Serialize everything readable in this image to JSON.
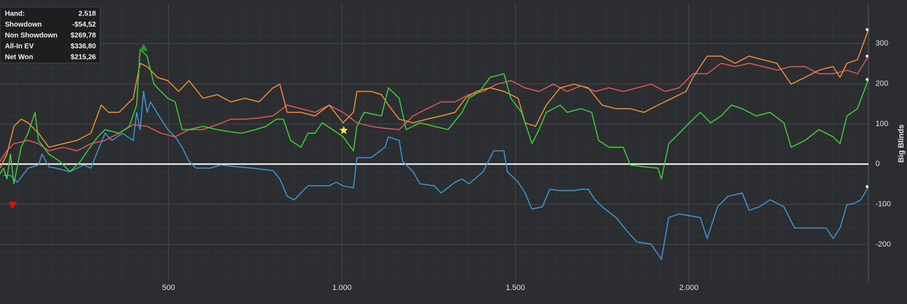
{
  "stats": [
    {
      "label": "Hand:",
      "value": "2.518"
    },
    {
      "label": "Showdown",
      "value": "-$54,52"
    },
    {
      "label": "Non Showdown",
      "value": "$269,78"
    },
    {
      "label": "All-In EV",
      "value": "$336,80"
    },
    {
      "label": "Net Won",
      "value": "$215,26"
    }
  ],
  "chart_data": {
    "type": "line",
    "y_axis_label": "Big Blinds",
    "xlim": [
      14,
      2518
    ],
    "ylim": [
      -296,
      400
    ],
    "xticks": [
      500,
      {
        "value": 1000,
        "label": "1.000"
      },
      {
        "value": 1500,
        "label": "1.500"
      },
      {
        "value": 2000,
        "label": "2.000"
      }
    ],
    "yticks": [
      -200,
      -100,
      0,
      100,
      200,
      300
    ],
    "grid": true,
    "series": [
      {
        "color": "#3b98d6",
        "x": [
          24,
          44,
          64,
          95,
          125,
          135,
          155,
          175,
          216,
          256,
          276,
          296,
          317,
          337,
          367,
          398,
          408,
          418,
          428,
          438,
          448,
          478,
          498,
          519,
          539,
          559,
          579,
          620,
          650,
          700,
          741,
          801,
          821,
          842,
          862,
          902,
          922,
          963,
          983,
          1003,
          1033,
          1043,
          1084,
          1124,
          1134,
          1165,
          1175,
          1205,
          1225,
          1266,
          1286,
          1326,
          1346,
          1366,
          1407,
          1437,
          1467,
          1477,
          1508,
          1528,
          1548,
          1578,
          1599,
          1629,
          1669,
          1689,
          1710,
          1730,
          1750,
          1790,
          1831,
          1851,
          1891,
          1921,
          1942,
          1972,
          2033,
          2053,
          2083,
          2113,
          2154,
          2174,
          2204,
          2234,
          2274,
          2305,
          2355,
          2396,
          2416,
          2436,
          2456,
          2476,
          2496,
          2518
        ],
        "values": [
          -28,
          -28,
          -45,
          -10,
          -2,
          25,
          -7,
          -10,
          -19,
          -2,
          -10,
          33,
          77,
          59,
          77,
          59,
          129,
          86,
          181,
          129,
          155,
          112,
          86,
          68,
          42,
          7,
          -10,
          -10,
          -2,
          -7,
          -10,
          -16,
          -37,
          -80,
          -89,
          -54,
          -54,
          -54,
          -45,
          -54,
          -59,
          16,
          16,
          42,
          68,
          59,
          7,
          -19,
          -49,
          -54,
          -72,
          -45,
          -37,
          -49,
          -19,
          33,
          33,
          -19,
          -45,
          -72,
          -112,
          -106,
          -63,
          -66,
          -66,
          -63,
          -63,
          -89,
          -106,
          -133,
          -176,
          -194,
          -199,
          -237,
          -133,
          -124,
          -133,
          -185,
          -106,
          -80,
          -72,
          -115,
          -106,
          -89,
          -106,
          -159,
          -159,
          -159,
          -185,
          -159,
          -101,
          -98,
          -89,
          -56
        ]
      },
      {
        "color": "#e0585a",
        "x": [
          14,
          34,
          54,
          95,
          125,
          155,
          196,
          236,
          276,
          317,
          357,
          398,
          438,
          478,
          519,
          559,
          599,
          640,
          680,
          720,
          761,
          801,
          842,
          882,
          922,
          963,
          1003,
          1043,
          1084,
          1124,
          1165,
          1205,
          1245,
          1286,
          1326,
          1366,
          1407,
          1447,
          1487,
          1528,
          1568,
          1609,
          1649,
          1689,
          1730,
          1770,
          1811,
          1851,
          1891,
          1932,
          1972,
          2012,
          2053,
          2093,
          2134,
          2174,
          2214,
          2254,
          2295,
          2335,
          2375,
          2416,
          2456,
          2486,
          2518
        ],
        "values": [
          7,
          33,
          51,
          59,
          51,
          33,
          42,
          33,
          51,
          59,
          77,
          98,
          94,
          77,
          68,
          86,
          86,
          98,
          112,
          112,
          115,
          120,
          147,
          138,
          129,
          147,
          129,
          103,
          94,
          89,
          86,
          120,
          138,
          155,
          155,
          173,
          181,
          199,
          208,
          190,
          181,
          199,
          181,
          195,
          181,
          190,
          181,
          190,
          199,
          181,
          190,
          225,
          225,
          251,
          243,
          251,
          243,
          234,
          243,
          243,
          225,
          225,
          234,
          225,
          269
        ]
      },
      {
        "color": "#ee9038",
        "x": [
          14,
          34,
          54,
          75,
          95,
          125,
          155,
          196,
          236,
          276,
          306,
          327,
          357,
          398,
          418,
          438,
          468,
          498,
          529,
          559,
          599,
          640,
          680,
          720,
          761,
          801,
          821,
          842,
          882,
          922,
          963,
          1003,
          1033,
          1043,
          1084,
          1114,
          1134,
          1165,
          1205,
          1245,
          1286,
          1326,
          1356,
          1387,
          1427,
          1467,
          1508,
          1528,
          1558,
          1589,
          1629,
          1669,
          1710,
          1750,
          1790,
          1831,
          1871,
          1911,
          1952,
          1992,
          2012,
          2053,
          2093,
          2134,
          2174,
          2214,
          2254,
          2295,
          2335,
          2375,
          2416,
          2436,
          2456,
          2486,
          2518
        ],
        "values": [
          -10,
          25,
          94,
          112,
          103,
          77,
          42,
          51,
          59,
          77,
          147,
          129,
          129,
          164,
          251,
          243,
          216,
          208,
          181,
          208,
          164,
          173,
          155,
          164,
          155,
          190,
          199,
          129,
          129,
          120,
          147,
          103,
          129,
          181,
          181,
          173,
          147,
          112,
          103,
          112,
          120,
          129,
          164,
          181,
          190,
          181,
          164,
          103,
          94,
          147,
          190,
          199,
          190,
          147,
          138,
          138,
          129,
          147,
          164,
          181,
          216,
          269,
          269,
          251,
          269,
          260,
          251,
          199,
          216,
          234,
          243,
          216,
          251,
          260,
          335
        ]
      },
      {
        "color": "#3fcf3a",
        "x": [
          14,
          24,
          34,
          44,
          54,
          75,
          95,
          115,
          125,
          155,
          186,
          216,
          246,
          266,
          296,
          317,
          357,
          387,
          408,
          418,
          438,
          458,
          478,
          498,
          519,
          539,
          559,
          599,
          640,
          680,
          710,
          751,
          781,
          811,
          831,
          852,
          882,
          902,
          922,
          943,
          973,
          1003,
          1033,
          1043,
          1064,
          1114,
          1134,
          1165,
          1185,
          1225,
          1266,
          1306,
          1346,
          1366,
          1397,
          1427,
          1467,
          1487,
          1518,
          1548,
          1568,
          1589,
          1629,
          1649,
          1689,
          1720,
          1740,
          1770,
          1811,
          1831,
          1871,
          1911,
          1921,
          1942,
          1962,
          2002,
          2033,
          2063,
          2093,
          2123,
          2154,
          2194,
          2234,
          2274,
          2295,
          2335,
          2375,
          2416,
          2436,
          2456,
          2486,
          2518
        ],
        "values": [
          -24,
          -10,
          -37,
          25,
          -49,
          42,
          77,
          129,
          59,
          25,
          7,
          -19,
          7,
          33,
          68,
          86,
          77,
          94,
          147,
          286,
          269,
          199,
          181,
          164,
          155,
          86,
          86,
          94,
          86,
          80,
          77,
          86,
          94,
          112,
          112,
          59,
          42,
          77,
          77,
          103,
          86,
          68,
          33,
          94,
          129,
          120,
          190,
          164,
          86,
          103,
          94,
          86,
          129,
          164,
          181,
          216,
          225,
          164,
          129,
          51,
          86,
          129,
          147,
          129,
          138,
          129,
          59,
          42,
          42,
          -2,
          -7,
          -10,
          -37,
          51,
          68,
          103,
          129,
          103,
          120,
          147,
          138,
          120,
          129,
          103,
          42,
          59,
          86,
          68,
          51,
          120,
          138,
          211
        ]
      }
    ],
    "markers": [
      {
        "shape": "triangle-up",
        "color": "#1f9a1f",
        "x": 428,
        "y": 291
      },
      {
        "shape": "triangle-down",
        "color": "#e01212",
        "x": 50,
        "y": -103
      },
      {
        "shape": "star",
        "color": "#f5e63c",
        "x": 1005,
        "y": 84
      }
    ]
  }
}
